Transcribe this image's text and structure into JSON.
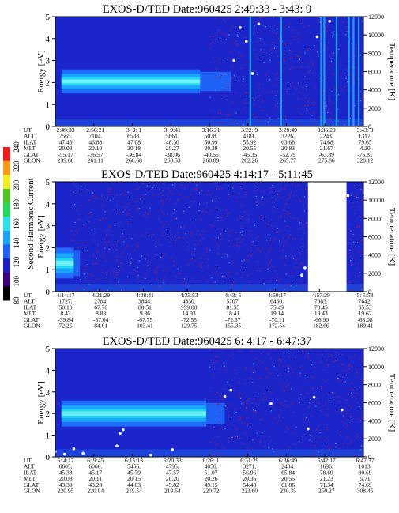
{
  "colorbar": {
    "label": "Second Harmonic Current",
    "ticks": [
      "80",
      "100",
      "120",
      "140",
      "160",
      "180",
      "200",
      "220",
      "240"
    ],
    "colors": [
      "#000000",
      "#3a007f",
      "#1c1ccf",
      "#1f5fff",
      "#17a4ff",
      "#26e6e8",
      "#1edc5a",
      "#4ec81e",
      "#f2f01a",
      "#ff9c14",
      "#f01818"
    ]
  },
  "panels": [
    {
      "title": "EXOS-D/TED",
      "date": "Date:960425  2:49:33 - 3:43: 9",
      "ylabel": "Energy [eV]",
      "y2label": "Temperature [K]",
      "y_ticks": [
        "0",
        "1",
        "2",
        "3",
        "4",
        "5"
      ],
      "y2_ticks": [
        "0",
        "2000",
        "4000",
        "6000",
        "8000",
        "10000",
        "12000"
      ],
      "row_labels": [
        "UT",
        "ALT",
        "ILAT",
        "MLT",
        "GLAT",
        "GLON"
      ],
      "columns": [
        [
          "2:49:33",
          "7565.",
          "47.43",
          "20.03",
          "-55.17",
          "239.66"
        ],
        [
          "2:56:21",
          "7104.",
          "46.88",
          "20.10",
          "-36.57",
          "261.11"
        ],
        [
          "3: 3: 1",
          "6538.",
          "47.08",
          "20.18",
          "-36.84",
          "260.68"
        ],
        [
          "3: 9:41",
          "5861.",
          "48.30",
          "20.27",
          "-38.06",
          "260.53"
        ],
        [
          "3:16:21",
          "5078.",
          "50.99",
          "20.39",
          "-40.66",
          "260.89"
        ],
        [
          "3:22: 9",
          "4181.",
          "55.92",
          "20.55",
          "-45.35",
          "262.26"
        ],
        [
          "3:29:49",
          "3226.",
          "63.68",
          "20.83",
          "-52.79",
          "265.77"
        ],
        [
          "3:36:29",
          "2243.",
          "74.68",
          "21.67",
          "-63.89",
          "275.86"
        ],
        [
          "3:43: 9",
          "1317.",
          "79.65",
          "4.20",
          "-75.81",
          "320.12"
        ]
      ],
      "band": {
        "x0": 0.02,
        "x1": 0.47,
        "fade": 0.57,
        "e_lo": 1.5,
        "e_hi": 2.6
      },
      "spikes": [
        0.63,
        0.73,
        0.86,
        0.87,
        0.91,
        0.95,
        0.965,
        0.982
      ],
      "gap": null,
      "temp_dots": [
        [
          0.58,
          7200
        ],
        [
          0.6,
          10800
        ],
        [
          0.62,
          9300
        ],
        [
          0.64,
          5800
        ],
        [
          0.66,
          11200
        ],
        [
          0.85,
          9800
        ],
        [
          0.89,
          11500
        ]
      ]
    },
    {
      "title": "EXOS-D/TED",
      "date": "Date:960425  4:14:17 - 5:11:45",
      "ylabel": "Energy [eV]",
      "y2label": "Temperature [K]",
      "y_ticks": [
        "0",
        "1",
        "2",
        "3",
        "4",
        "5"
      ],
      "y2_ticks": [
        "0",
        "2000",
        "4000",
        "6000",
        "8000",
        "10000",
        "12000"
      ],
      "row_labels": [
        "UT",
        "ALT",
        "ILAT",
        "MLT",
        "GLAT",
        "GLON"
      ],
      "columns": [
        [
          "4:14:17",
          "1727.",
          "50.10",
          "8.43",
          "-39.84",
          "72.26"
        ],
        [
          "4:21:29",
          "2784.",
          "67.70",
          "8.83",
          "-57.04",
          "84.61"
        ],
        [
          "4:28:41",
          "3844.",
          "80.51",
          "9.86",
          "-67.75",
          "103.41"
        ],
        [
          "4:35:53",
          "4830.",
          "999.00",
          "14.93",
          "-72.55",
          "129.75"
        ],
        [
          "4:43: 5",
          "5707.",
          "81.55",
          "18.41",
          "-72.57",
          "155.35"
        ],
        [
          "4:50:17",
          "6460.",
          "75.49",
          "19.14",
          "-70.11",
          "172.54"
        ],
        [
          "4:57:29",
          "7083.",
          "70.45",
          "19.43",
          "-66.90",
          "182.66"
        ],
        [
          "5: 5:53",
          "7642.",
          "65.53",
          "19.62",
          "-63.08",
          "189.41"
        ]
      ],
      "band": {
        "x0": 0.0,
        "x1": 0.06,
        "fade": 0.08,
        "e_lo": 0.6,
        "e_hi": 2.0
      },
      "spikes": [],
      "gap": {
        "x0": 0.82,
        "x1": 0.945
      },
      "temp_dots": [
        [
          0.8,
          1800
        ],
        [
          0.81,
          2600
        ],
        [
          0.95,
          10500
        ]
      ]
    },
    {
      "title": "EXOS-D/TED",
      "date": "Date:960425  6: 4:17 - 6:47:37",
      "ylabel": "Energy [eV]",
      "y2label": "Temperature [K]",
      "y_ticks": [
        "0",
        "1",
        "2",
        "3",
        "4",
        "5"
      ],
      "y2_ticks": [
        "0",
        "2000",
        "4000",
        "6000",
        "8000",
        "10000",
        "12000"
      ],
      "row_labels": [
        "UT",
        "ALT",
        "ILAT",
        "MLT",
        "GLAT",
        "GLON"
      ],
      "columns": [
        [
          "6: 4:17",
          "6603.",
          "45.38",
          "20.08",
          "43.30",
          "220.95"
        ],
        [
          "6: 9:45",
          "6066.",
          "45.17",
          "20.11",
          "43.28",
          "220.04"
        ],
        [
          "6:15:13",
          "5456.",
          "45.79",
          "20.15",
          "44.03",
          "219.54"
        ],
        [
          "6:20:33",
          "4795.",
          "47.57",
          "20.20",
          "45.82",
          "219.64"
        ],
        [
          "6:26: 1",
          "4056.",
          "51.07",
          "20.26",
          "49.15",
          "220.72"
        ],
        [
          "6:31:29",
          "3271.",
          "56.96",
          "20.36",
          "54.43",
          "223.60"
        ],
        [
          "6:36:49",
          "2484.",
          "65.84",
          "20.55",
          "61.86",
          "230.35"
        ],
        [
          "6:42:17",
          "1696.",
          "78.69",
          "21.23",
          "71.34",
          "250.27"
        ],
        [
          "6:47:37",
          "1013.",
          "80.69",
          "5.71",
          "74.69",
          "308.46"
        ]
      ],
      "band": {
        "x0": 0.02,
        "x1": 0.49,
        "fade": 0.55,
        "e_lo": 1.4,
        "e_hi": 2.6
      },
      "spikes": [],
      "gap": null,
      "temp_dots": [
        [
          0.0,
          600
        ],
        [
          0.03,
          300
        ],
        [
          0.06,
          900
        ],
        [
          0.09,
          400
        ],
        [
          0.2,
          1200
        ],
        [
          0.21,
          2600
        ],
        [
          0.22,
          3000
        ],
        [
          0.31,
          200
        ],
        [
          0.38,
          800
        ],
        [
          0.55,
          6700
        ],
        [
          0.57,
          7400
        ],
        [
          0.7,
          5900
        ],
        [
          0.82,
          3100
        ],
        [
          0.84,
          6600
        ],
        [
          0.93,
          5200
        ]
      ]
    }
  ]
}
